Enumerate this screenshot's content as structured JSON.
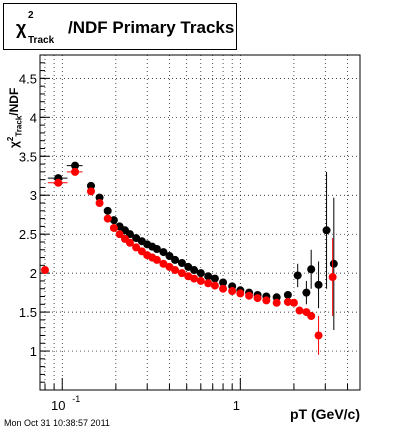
{
  "chart_data": {
    "type": "scatter",
    "title": {
      "symbol": "χ",
      "superscript": "2",
      "subscript": "Track",
      "text": "/NDF  Primary Tracks"
    },
    "xlabel": "pT (GeV/c)",
    "ylabel": {
      "symbol": "χ",
      "superscript": "2",
      "subscript": "Track",
      "text": "/NDF"
    },
    "xscale": "log",
    "xlim": [
      0.075,
      4.7
    ],
    "ylim": [
      0.5,
      4.8
    ],
    "grid": true,
    "x_ticks": [
      {
        "value": 0.1,
        "label": "10",
        "exp": "-1"
      },
      {
        "value": 1,
        "label": "1"
      }
    ],
    "y_ticks": [
      1,
      1.5,
      2,
      2.5,
      3,
      3.5,
      4,
      4.5
    ],
    "y_tick_labels": [
      "1",
      "1.5",
      "2",
      "2.5",
      "3",
      "3.5",
      "4",
      "4.5"
    ],
    "series": [
      {
        "color": "#000000",
        "points": [
          {
            "x": 0.095,
            "y": 3.22,
            "xerr": 0.012,
            "yerr": 0.02
          },
          {
            "x": 0.118,
            "y": 3.38,
            "xerr": 0.012,
            "yerr": 0.02
          },
          {
            "x": 0.145,
            "y": 3.12
          },
          {
            "x": 0.162,
            "y": 2.97
          },
          {
            "x": 0.18,
            "y": 2.8
          },
          {
            "x": 0.195,
            "y": 2.68
          },
          {
            "x": 0.21,
            "y": 2.6
          },
          {
            "x": 0.225,
            "y": 2.55
          },
          {
            "x": 0.24,
            "y": 2.5
          },
          {
            "x": 0.26,
            "y": 2.45
          },
          {
            "x": 0.28,
            "y": 2.41
          },
          {
            "x": 0.3,
            "y": 2.37
          },
          {
            "x": 0.32,
            "y": 2.34
          },
          {
            "x": 0.34,
            "y": 2.31
          },
          {
            "x": 0.37,
            "y": 2.27
          },
          {
            "x": 0.4,
            "y": 2.22
          },
          {
            "x": 0.43,
            "y": 2.17
          },
          {
            "x": 0.47,
            "y": 2.13
          },
          {
            "x": 0.51,
            "y": 2.08
          },
          {
            "x": 0.55,
            "y": 2.04
          },
          {
            "x": 0.6,
            "y": 2.0
          },
          {
            "x": 0.66,
            "y": 1.96
          },
          {
            "x": 0.72,
            "y": 1.93
          },
          {
            "x": 0.8,
            "y": 1.88
          },
          {
            "x": 0.9,
            "y": 1.83
          },
          {
            "x": 1.0,
            "y": 1.78
          },
          {
            "x": 1.12,
            "y": 1.75
          },
          {
            "x": 1.25,
            "y": 1.72
          },
          {
            "x": 1.4,
            "y": 1.7
          },
          {
            "x": 1.6,
            "y": 1.69
          },
          {
            "x": 1.85,
            "y": 1.72
          },
          {
            "x": 2.1,
            "y": 1.97,
            "yerr": 0.15
          },
          {
            "x": 2.35,
            "y": 1.75,
            "yerr": 0.15
          },
          {
            "x": 2.5,
            "y": 2.05,
            "yerr": 0.25
          },
          {
            "x": 2.75,
            "y": 1.85,
            "yerr": 0.3
          },
          {
            "x": 3.05,
            "y": 2.55,
            "yerr": 0.75
          },
          {
            "x": 3.35,
            "y": 2.12,
            "yerr": 0.85
          }
        ]
      },
      {
        "color": "#ff0000",
        "points": [
          {
            "x": 0.08,
            "y": 2.04
          },
          {
            "x": 0.095,
            "y": 3.16,
            "xerr": 0.012,
            "yerr": 0.02
          },
          {
            "x": 0.118,
            "y": 3.3,
            "xerr": 0.012,
            "yerr": 0.02
          },
          {
            "x": 0.145,
            "y": 3.05
          },
          {
            "x": 0.162,
            "y": 2.9
          },
          {
            "x": 0.18,
            "y": 2.7
          },
          {
            "x": 0.195,
            "y": 2.58
          },
          {
            "x": 0.21,
            "y": 2.5
          },
          {
            "x": 0.225,
            "y": 2.44
          },
          {
            "x": 0.24,
            "y": 2.39
          },
          {
            "x": 0.26,
            "y": 2.33
          },
          {
            "x": 0.28,
            "y": 2.28
          },
          {
            "x": 0.3,
            "y": 2.23
          },
          {
            "x": 0.32,
            "y": 2.2
          },
          {
            "x": 0.34,
            "y": 2.17
          },
          {
            "x": 0.37,
            "y": 2.12
          },
          {
            "x": 0.4,
            "y": 2.08
          },
          {
            "x": 0.43,
            "y": 2.04
          },
          {
            "x": 0.47,
            "y": 2.0
          },
          {
            "x": 0.51,
            "y": 1.96
          },
          {
            "x": 0.55,
            "y": 1.93
          },
          {
            "x": 0.6,
            "y": 1.9
          },
          {
            "x": 0.66,
            "y": 1.87
          },
          {
            "x": 0.72,
            "y": 1.84
          },
          {
            "x": 0.8,
            "y": 1.8
          },
          {
            "x": 0.9,
            "y": 1.77
          },
          {
            "x": 1.0,
            "y": 1.74
          },
          {
            "x": 1.12,
            "y": 1.71
          },
          {
            "x": 1.25,
            "y": 1.68
          },
          {
            "x": 1.4,
            "y": 1.65
          },
          {
            "x": 1.6,
            "y": 1.62
          },
          {
            "x": 1.85,
            "y": 1.63
          },
          {
            "x": 2.0,
            "y": 1.62
          },
          {
            "x": 2.15,
            "y": 1.52
          },
          {
            "x": 2.35,
            "y": 1.5
          },
          {
            "x": 2.5,
            "y": 1.45
          },
          {
            "x": 2.75,
            "y": 1.2,
            "yerr": 0.25
          },
          {
            "x": 3.3,
            "y": 1.95,
            "yerr": 0.5
          }
        ]
      }
    ]
  },
  "footer": "Mon Oct 31 10:38:57 2011"
}
